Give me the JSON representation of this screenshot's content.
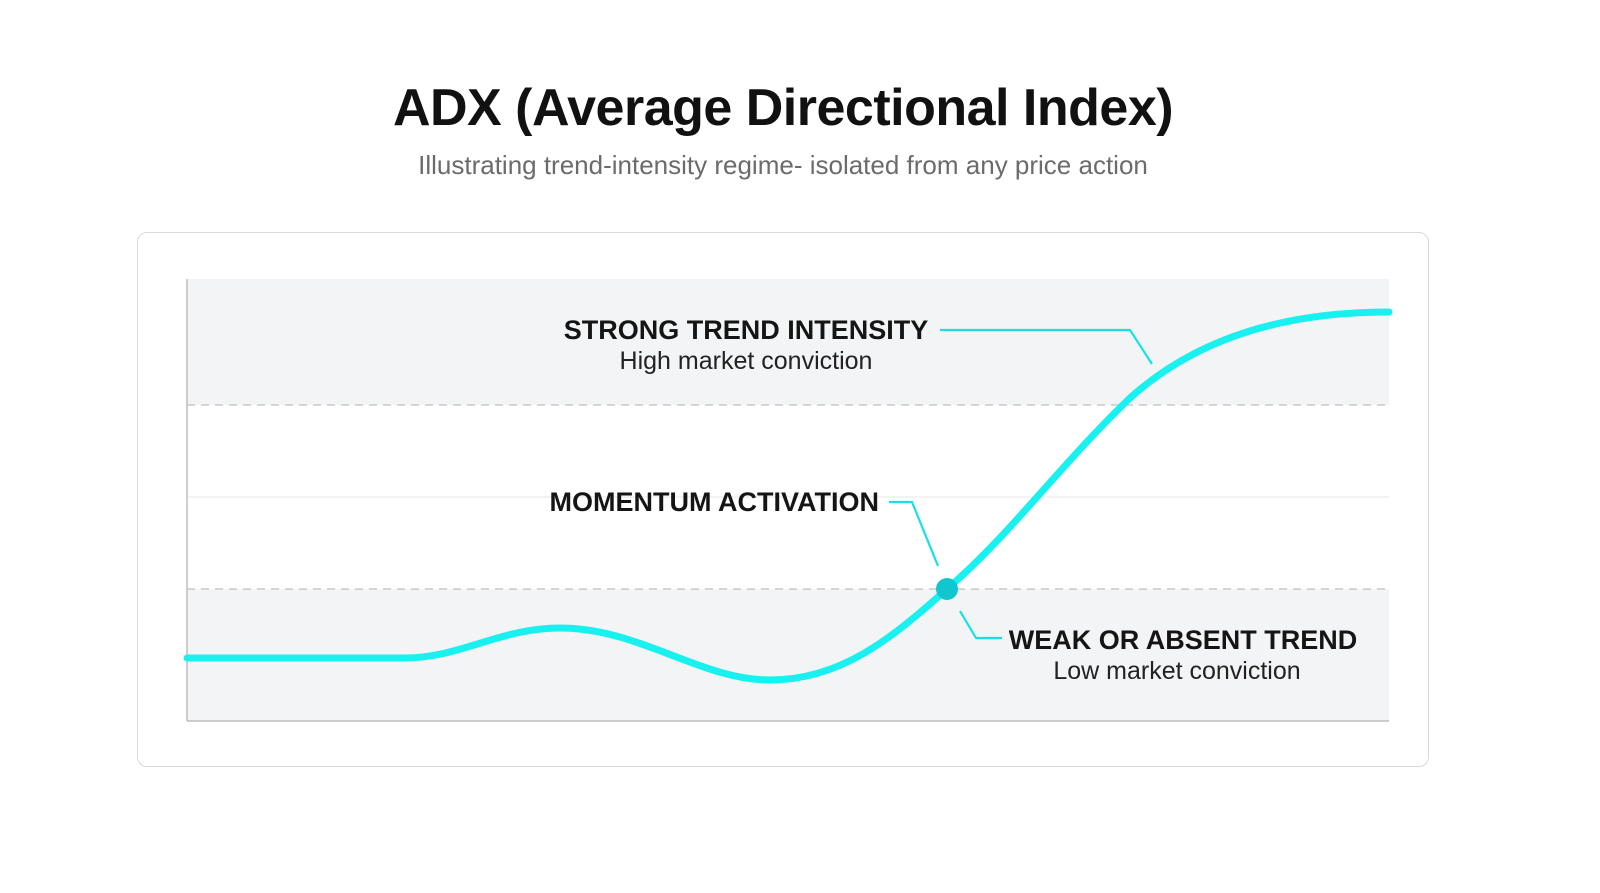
{
  "header": {
    "title": "ADX (Average Directional Index)",
    "subtitle": "Illustrating trend-intensity regime- isolated from any price action"
  },
  "annotations": {
    "strong": {
      "heading": "STRONG TREND INTENSITY",
      "sub": "High market conviction"
    },
    "momentum": {
      "heading": "MOMENTUM ACTIVATION"
    },
    "weak": {
      "heading": "WEAK OR ABSENT TREND",
      "sub": "Low market conviction"
    }
  },
  "colors": {
    "line": "#19f0f0",
    "marker": "#12c6cf",
    "zone_fill": "#f3f4f5",
    "threshold_dash": "#c9c9c9"
  },
  "chart_data": {
    "type": "line",
    "zones": [
      {
        "name": "strong",
        "shaded": true
      },
      {
        "name": "neutral",
        "shaded": false
      },
      {
        "name": "weak",
        "shaded": true
      }
    ],
    "threshold_lines": [
      "upper",
      "lower"
    ],
    "activation_marker": true
  }
}
